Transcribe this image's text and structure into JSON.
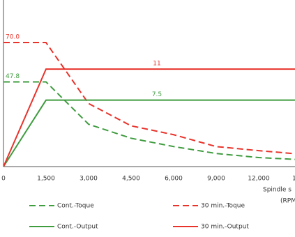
{
  "chart_data": {
    "type": "line",
    "x_label_lines": [
      "Spindle s",
      "(RPM"
    ],
    "categories": [
      "0",
      "1,500",
      "3,000",
      "4,500",
      "6,000",
      "9,000",
      "12,000",
      "1"
    ],
    "ylim": [
      0,
      94
    ],
    "y2lim": [
      0,
      18.8
    ],
    "series": [
      {
        "name": "Cont.-Toque",
        "color": "#3f9c3f",
        "dash": true,
        "axis": "y",
        "values": [
          47.8,
          47.8,
          23.9,
          16,
          11.3,
          7.4,
          5.1,
          3.9
        ]
      },
      {
        "name": "30 min.-Toque",
        "color": "#e8332b",
        "dash": true,
        "axis": "y",
        "values": [
          70,
          70,
          35.6,
          23,
          18,
          11.3,
          9,
          7
        ]
      },
      {
        "name": "Cont.-Output",
        "color": "#3f9c3f",
        "dash": false,
        "axis": "y2",
        "values": [
          0,
          7.5,
          7.5,
          7.5,
          7.5,
          7.5,
          7.5,
          7.5
        ]
      },
      {
        "name": "30 min.-Output",
        "color": "#e8332b",
        "dash": false,
        "axis": "y2",
        "values": [
          0,
          11,
          11,
          11,
          11,
          11,
          11,
          11
        ]
      }
    ],
    "annotations": [
      {
        "text": "70.0",
        "value": 70,
        "axis": "y",
        "color": "#e8332b"
      },
      {
        "text": "47.8",
        "value": 47.8,
        "axis": "y",
        "color": "#3f9c3f"
      },
      {
        "text": "11",
        "value": 11,
        "axis": "y2",
        "color": "#e8332b"
      },
      {
        "text": "7.5",
        "value": 7.5,
        "axis": "y2",
        "color": "#3f9c3f"
      }
    ]
  }
}
